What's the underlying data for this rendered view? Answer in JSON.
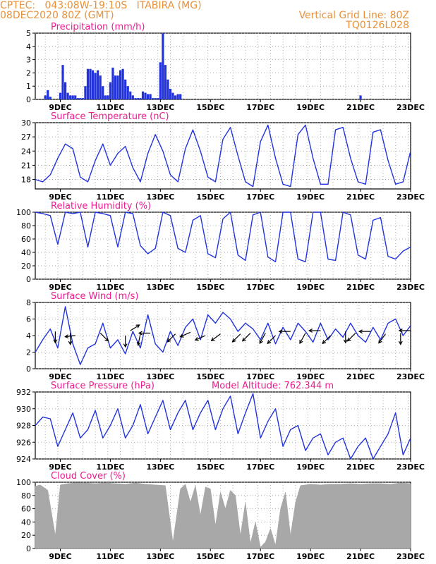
{
  "header": {
    "line1_left": "CPTEC:   043:08W-19:10S   ITABIRA (MG)",
    "line2_left": "08DEC2020 80Z (GMT)",
    "line1_right": "Vertical Grid Line: 80Z",
    "line2_right": "TQ0126L028"
  },
  "colors": {
    "header": "#e8913a",
    "title": "#ee1c8f",
    "series": "#2233dd",
    "cloud": "#a8a8a8",
    "grid": "#999999"
  },
  "x_ticks": [
    "9DEC",
    "11DEC",
    "13DEC",
    "15DEC",
    "17DEC",
    "19DEC",
    "21DEC",
    "23DEC"
  ],
  "chart_data": [
    {
      "type": "bar",
      "title": "Precipitation (mm/h)",
      "ylim": [
        0,
        5
      ],
      "yticks": [
        "0",
        "1",
        "2",
        "3",
        "4",
        "5"
      ],
      "x": [
        8.4,
        8.5,
        8.6,
        9.0,
        9.1,
        9.2,
        9.3,
        9.4,
        9.5,
        9.6,
        9.7,
        9.8,
        9.9,
        10.0,
        10.1,
        10.2,
        10.3,
        10.4,
        10.5,
        10.6,
        10.7,
        10.8,
        10.9,
        11.0,
        11.1,
        11.2,
        11.3,
        11.4,
        11.5,
        11.6,
        11.7,
        11.8,
        11.9,
        12.0,
        12.1,
        12.2,
        12.3,
        12.4,
        12.5,
        12.6,
        12.7,
        12.8,
        12.9,
        13.0,
        13.1,
        13.2,
        13.3,
        13.4,
        13.5,
        13.6,
        13.7,
        13.8,
        21.0
      ],
      "values": [
        0.3,
        0.7,
        0.2,
        0.5,
        2.6,
        1.3,
        0.5,
        0.3,
        0.3,
        0.3,
        0.1,
        0.1,
        0.1,
        1.0,
        2.3,
        2.3,
        2.2,
        2.0,
        2.2,
        1.8,
        1.0,
        0.3,
        0.3,
        1.3,
        2.4,
        1.8,
        1.8,
        2.2,
        2.3,
        1.5,
        1.0,
        0.6,
        0.3,
        0.1,
        0.1,
        0.1,
        0.6,
        0.5,
        0.4,
        0.4,
        0.1,
        0.1,
        0.1,
        2.8,
        5.0,
        2.6,
        1.5,
        0.8,
        0.5,
        0.3,
        0.4,
        0.4,
        0.3
      ]
    },
    {
      "type": "line",
      "title": "Surface Temperature (nC)",
      "ylim": [
        16,
        30
      ],
      "yticks": [
        "18",
        "21",
        "24",
        "27",
        "30"
      ],
      "x": [
        8.0,
        8.3,
        8.6,
        8.9,
        9.2,
        9.5,
        9.8,
        10.1,
        10.4,
        10.7,
        11.0,
        11.3,
        11.6,
        11.9,
        12.2,
        12.5,
        12.8,
        13.1,
        13.4,
        13.7,
        14.0,
        14.3,
        14.6,
        14.9,
        15.2,
        15.5,
        15.8,
        16.1,
        16.4,
        16.7,
        17.0,
        17.3,
        17.6,
        17.9,
        18.2,
        18.5,
        18.8,
        19.1,
        19.4,
        19.7,
        20.0,
        20.3,
        20.6,
        20.9,
        21.2,
        21.5,
        21.8,
        22.1,
        22.4,
        22.7,
        23.0
      ],
      "values": [
        18.0,
        17.5,
        19.0,
        22.5,
        25.5,
        24.5,
        18.5,
        17.5,
        22.0,
        25.5,
        21.0,
        23.5,
        25.0,
        20.5,
        17.5,
        23.5,
        27.5,
        24.0,
        19.0,
        17.5,
        24.5,
        28.5,
        24.0,
        18.5,
        17.5,
        26.5,
        29.0,
        23.0,
        17.5,
        16.5,
        26.0,
        29.5,
        22.5,
        17.0,
        16.5,
        27.5,
        29.5,
        22.5,
        17.0,
        17.0,
        28.5,
        29.0,
        22.5,
        17.5,
        17.0,
        28.0,
        28.5,
        22.0,
        17.0,
        17.5,
        24.0
      ]
    },
    {
      "type": "line",
      "title": "Relative Humidity (%)",
      "ylim": [
        0,
        100
      ],
      "yticks": [
        "0",
        "20",
        "40",
        "60",
        "80",
        "100"
      ],
      "x": [
        8.0,
        8.3,
        8.6,
        8.9,
        9.2,
        9.5,
        9.8,
        10.1,
        10.4,
        10.7,
        11.0,
        11.3,
        11.6,
        11.9,
        12.2,
        12.5,
        12.8,
        13.1,
        13.4,
        13.7,
        14.0,
        14.3,
        14.6,
        14.9,
        15.2,
        15.5,
        15.8,
        16.1,
        16.4,
        16.7,
        17.0,
        17.3,
        17.6,
        17.9,
        18.2,
        18.5,
        18.8,
        19.1,
        19.4,
        19.7,
        20.0,
        20.3,
        20.6,
        20.9,
        21.2,
        21.5,
        21.8,
        22.1,
        22.4,
        22.7,
        23.0
      ],
      "values": [
        100,
        98,
        95,
        52,
        100,
        98,
        100,
        48,
        100,
        98,
        95,
        48,
        100,
        98,
        50,
        38,
        46,
        100,
        95,
        46,
        40,
        88,
        95,
        38,
        32,
        90,
        100,
        36,
        28,
        96,
        100,
        33,
        26,
        100,
        100,
        30,
        26,
        100,
        100,
        30,
        28,
        100,
        96,
        36,
        30,
        88,
        92,
        34,
        30,
        42,
        48
      ]
    },
    {
      "type": "line",
      "title": "Surface Wind (m/s)",
      "ylim": [
        0,
        8
      ],
      "yticks": [
        "0",
        "2",
        "4",
        "6",
        "8"
      ],
      "x": [
        8.0,
        8.3,
        8.6,
        8.9,
        9.2,
        9.5,
        9.8,
        10.1,
        10.4,
        10.7,
        11.0,
        11.3,
        11.6,
        11.9,
        12.2,
        12.5,
        12.8,
        13.1,
        13.4,
        13.7,
        14.0,
        14.3,
        14.6,
        14.9,
        15.2,
        15.5,
        15.8,
        16.1,
        16.4,
        16.7,
        17.0,
        17.3,
        17.6,
        17.9,
        18.2,
        18.5,
        18.8,
        19.1,
        19.4,
        19.7,
        20.0,
        20.3,
        20.6,
        20.9,
        21.2,
        21.5,
        21.8,
        22.1,
        22.4,
        22.7,
        23.0
      ],
      "values": [
        2.0,
        3.5,
        4.8,
        2.5,
        7.5,
        3.0,
        0.5,
        2.5,
        3.0,
        5.5,
        2.5,
        3.5,
        1.8,
        4.5,
        2.5,
        6.5,
        3.0,
        2.0,
        4.5,
        2.8,
        5.0,
        6.0,
        3.5,
        6.5,
        5.5,
        6.8,
        6.0,
        4.5,
        5.5,
        4.8,
        3.5,
        5.5,
        3.0,
        5.0,
        3.5,
        5.5,
        4.5,
        3.2,
        5.5,
        3.5,
        4.8,
        3.8,
        5.5,
        4.0,
        3.2,
        5.0,
        3.5,
        5.5,
        6.0,
        4.0,
        5.2
      ],
      "arrows": [
        {
          "day": 8.8,
          "speed": 4.5,
          "dx": 0,
          "dy": 1
        },
        {
          "day": 9.4,
          "speed": 4.3,
          "dx": 0,
          "dy": 1
        },
        {
          "day": 9.6,
          "speed": 4.0,
          "dx": -0.9,
          "dy": 0.1
        },
        {
          "day": 10.6,
          "speed": 4.3,
          "dx": 0.7,
          "dy": 0.7
        },
        {
          "day": 11.6,
          "speed": 4.0,
          "dx": 0,
          "dy": 1
        },
        {
          "day": 11.8,
          "speed": 4.6,
          "dx": 0.8,
          "dy": -0.5
        },
        {
          "day": 12.2,
          "speed": 4.2,
          "dx": -0.2,
          "dy": 1
        },
        {
          "day": 12.6,
          "speed": 4.3,
          "dx": -1,
          "dy": 0
        },
        {
          "day": 13.6,
          "speed": 4.2,
          "dx": -0.7,
          "dy": 0.7
        },
        {
          "day": 14.2,
          "speed": 4.4,
          "dx": -0.9,
          "dy": 0.4
        },
        {
          "day": 14.8,
          "speed": 4.0,
          "dx": -0.9,
          "dy": 0.4
        },
        {
          "day": 15.4,
          "speed": 4.2,
          "dx": -0.8,
          "dy": 0.6
        },
        {
          "day": 16.2,
          "speed": 4.2,
          "dx": -0.7,
          "dy": 0.7
        },
        {
          "day": 16.6,
          "speed": 4.3,
          "dx": -0.7,
          "dy": 0.7
        },
        {
          "day": 17.2,
          "speed": 4.3,
          "dx": -0.5,
          "dy": 0.9
        },
        {
          "day": 17.6,
          "speed": 4.0,
          "dx": -0.7,
          "dy": 0.7
        },
        {
          "day": 18.2,
          "speed": 4.5,
          "dx": -1,
          "dy": 0
        },
        {
          "day": 18.8,
          "speed": 4.3,
          "dx": -0.5,
          "dy": 0.9
        },
        {
          "day": 19.4,
          "speed": 4.6,
          "dx": -1,
          "dy": 0
        },
        {
          "day": 19.8,
          "speed": 4.0,
          "dx": -0.7,
          "dy": 0.7
        },
        {
          "day": 20.4,
          "speed": 4.5,
          "dx": 0,
          "dy": 1
        },
        {
          "day": 20.8,
          "speed": 4.3,
          "dx": -0.7,
          "dy": 0.7
        },
        {
          "day": 21.4,
          "speed": 4.5,
          "dx": -1,
          "dy": 0
        },
        {
          "day": 22.0,
          "speed": 4.2,
          "dx": -0.6,
          "dy": 0.8
        },
        {
          "day": 22.6,
          "speed": 4.3,
          "dx": 0,
          "dy": 1
        },
        {
          "day": 23.0,
          "speed": 4.6,
          "dx": -1,
          "dy": 0
        }
      ]
    },
    {
      "type": "line",
      "title": "Surface Pressure (hPa)",
      "annotation": "Model Altitude: 762.344 m",
      "ylim": [
        924,
        932
      ],
      "yticks": [
        "924",
        "926",
        "928",
        "930",
        "932"
      ],
      "x": [
        8.0,
        8.3,
        8.6,
        8.9,
        9.2,
        9.5,
        9.8,
        10.1,
        10.4,
        10.7,
        11.0,
        11.3,
        11.6,
        11.9,
        12.2,
        12.5,
        12.8,
        13.1,
        13.4,
        13.7,
        14.0,
        14.3,
        14.6,
        14.9,
        15.2,
        15.5,
        15.8,
        16.1,
        16.4,
        16.7,
        17.0,
        17.3,
        17.6,
        17.9,
        18.2,
        18.5,
        18.8,
        19.1,
        19.4,
        19.7,
        20.0,
        20.3,
        20.6,
        20.9,
        21.2,
        21.5,
        21.8,
        22.1,
        22.4,
        22.7,
        23.0
      ],
      "values": [
        928.0,
        929.0,
        928.8,
        925.5,
        927.5,
        929.5,
        926.5,
        927.5,
        929.8,
        926.5,
        928.0,
        930.0,
        926.5,
        928.0,
        930.5,
        927.0,
        929.0,
        931.0,
        927.5,
        929.5,
        931.0,
        927.5,
        929.5,
        931.0,
        927.5,
        930.0,
        931.5,
        927.0,
        929.5,
        931.8,
        926.5,
        928.5,
        930.0,
        925.5,
        927.5,
        928.0,
        925.0,
        926.5,
        927.0,
        924.5,
        926.0,
        926.5,
        924.0,
        925.5,
        926.5,
        924.0,
        925.5,
        927.0,
        929.5,
        924.5,
        926.5
      ]
    },
    {
      "type": "area",
      "title": "Cloud Cover (%)",
      "ylim": [
        0,
        100
      ],
      "yticks": [
        "0",
        "20",
        "40",
        "60",
        "80",
        "100"
      ],
      "x": [
        8.0,
        8.2,
        8.5,
        8.8,
        9.0,
        9.3,
        9.6,
        10.0,
        10.4,
        10.8,
        11.2,
        11.6,
        12.0,
        12.4,
        12.8,
        13.2,
        13.5,
        13.8,
        14.0,
        14.2,
        14.4,
        14.6,
        14.8,
        15.0,
        15.2,
        15.4,
        15.6,
        15.8,
        16.0,
        16.2,
        16.4,
        16.6,
        16.8,
        17.0,
        17.2,
        17.4,
        17.6,
        17.8,
        18.0,
        18.2,
        18.4,
        18.6,
        18.8,
        19.0,
        19.4,
        19.8,
        20.2,
        20.6,
        21.0,
        21.4,
        21.8,
        22.2,
        22.6,
        23.0
      ],
      "values": [
        94,
        96,
        88,
        20,
        96,
        98,
        99,
        99,
        98,
        99,
        98,
        97,
        99,
        97,
        96,
        95,
        10,
        90,
        97,
        70,
        95,
        50,
        93,
        90,
        35,
        85,
        60,
        88,
        80,
        20,
        70,
        8,
        40,
        2,
        10,
        30,
        5,
        60,
        85,
        20,
        70,
        95,
        96,
        97,
        96,
        97,
        97,
        98,
        97,
        98,
        98,
        97,
        99,
        98
      ]
    }
  ]
}
